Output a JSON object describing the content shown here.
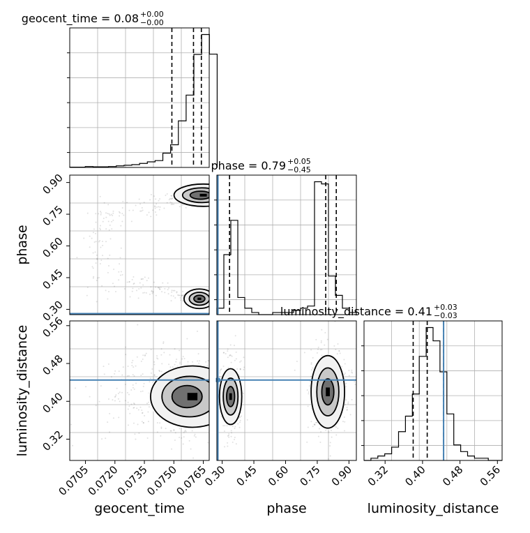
{
  "chart_data": [
    {
      "type": "histogram",
      "panel": "1d",
      "parameter": "geocent_time",
      "title": {
        "prefix": "geocent_time = 0.08",
        "sup": "+0.00",
        "sub": "−0.00"
      },
      "xlim": [
        0.0697,
        0.0768
      ],
      "bins": {
        "start": 0.0697,
        "width": 0.000395,
        "counts": [
          1,
          1,
          3,
          2,
          2,
          3,
          5,
          7,
          9,
          13,
          18,
          22,
          46,
          73,
          150,
          233,
          364,
          428,
          365
        ]
      },
      "quantiles": [
        0.0749,
        0.076,
        0.0764
      ],
      "grid": true
    },
    {
      "type": "histogram",
      "panel": "1d",
      "parameter": "phase",
      "title": {
        "prefix": "phase = 0.79",
        "sup": "+0.05",
        "sub": "−0.45"
      },
      "xlim": [
        0.275,
        0.935
      ],
      "bins": {
        "start": 0.275,
        "width": 0.033,
        "counts": [
          3,
          28,
          44,
          8,
          3,
          1,
          0,
          0,
          1,
          1,
          1,
          2,
          3,
          4,
          62,
          61,
          18,
          9,
          3,
          1
        ]
      },
      "quantiles": [
        0.335,
        0.79,
        0.84
      ],
      "truth": 0.28,
      "grid": true
    },
    {
      "type": "histogram",
      "panel": "1d",
      "parameter": "luminosity_distance",
      "title": {
        "prefix": "luminosity_distance = 0.41",
        "sup": "+0.03",
        "sub": "−0.03"
      },
      "xlim": [
        0.275,
        0.57
      ],
      "xticks": [
        "0.32",
        "0.40",
        "0.48",
        "0.56"
      ],
      "xlabel": "luminosity_distance",
      "bins": {
        "start": 0.275,
        "width": 0.01475,
        "counts": [
          0,
          1,
          2,
          3,
          6,
          13,
          20,
          30,
          47,
          60,
          54,
          40,
          21,
          7,
          4,
          2,
          1,
          1,
          0,
          0
        ]
      },
      "quantiles": [
        0.38,
        0.41,
        0.445
      ],
      "truth": 0.445,
      "grid": true
    },
    {
      "type": "contour",
      "panel": "2d",
      "x_parameter": "geocent_time",
      "y_parameter": "phase",
      "xlim": [
        0.0697,
        0.0768
      ],
      "ylim": [
        0.275,
        0.935
      ],
      "yticks": [
        "0.30",
        "0.45",
        "0.60",
        "0.75",
        "0.90"
      ],
      "ylabel": "phase",
      "modes": [
        {
          "x": 0.0765,
          "y": 0.84
        },
        {
          "x": 0.0763,
          "y": 0.35
        }
      ],
      "truth_y": 0.28
    },
    {
      "type": "contour",
      "panel": "2d",
      "x_parameter": "geocent_time",
      "y_parameter": "luminosity_distance",
      "xlim": [
        0.0697,
        0.0768
      ],
      "ylim": [
        0.275,
        0.57
      ],
      "xticks": [
        "0.0705",
        "0.0720",
        "0.0735",
        "0.0750",
        "0.0765"
      ],
      "yticks": [
        "0.32",
        "0.40",
        "0.48",
        "0.56"
      ],
      "xlabel": "geocent_time",
      "ylabel": "luminosity_distance",
      "modes": [
        {
          "x": 0.0763,
          "y": 0.41
        }
      ],
      "truth_y": 0.445
    },
    {
      "type": "contour",
      "panel": "2d",
      "x_parameter": "phase",
      "y_parameter": "luminosity_distance",
      "xlim": [
        0.275,
        0.935
      ],
      "ylim": [
        0.275,
        0.57
      ],
      "xticks": [
        "0.30",
        "0.45",
        "0.60",
        "0.75",
        "0.90"
      ],
      "xlabel": "phase",
      "modes": [
        {
          "x": 0.34,
          "y": 0.41
        },
        {
          "x": 0.8,
          "y": 0.42
        }
      ],
      "truth_x": 0.28,
      "truth_y": 0.445
    }
  ]
}
